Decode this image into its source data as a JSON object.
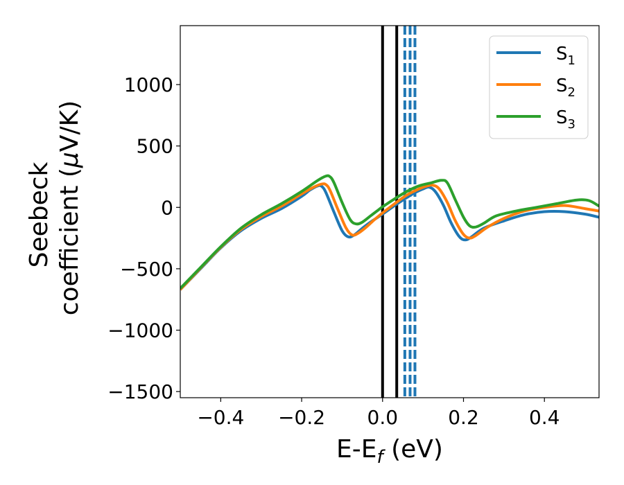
{
  "chart_data": {
    "type": "line",
    "xlabel": {
      "main": "E-E",
      "sub": "f",
      "unit": " (eV)"
    },
    "ylabel": {
      "line1": "Seebeck",
      "line2": "coefficient  (",
      "mu": "μ",
      "unit": "V/K)"
    },
    "xlim": [
      -0.5,
      0.535
    ],
    "ylim": [
      -1550,
      1480
    ],
    "xticks": [
      -0.4,
      -0.2,
      0.0,
      0.2,
      0.4
    ],
    "xtick_labels": [
      "−0.4",
      "−0.2",
      "0.0",
      "0.2",
      "0.4"
    ],
    "yticks": [
      -1500,
      -1000,
      -500,
      0,
      500,
      1000
    ],
    "ytick_labels": [
      "−1500",
      "−1000",
      "−500",
      "0",
      "500",
      "1000"
    ],
    "grid": false,
    "legend_position": "top-right",
    "series": [
      {
        "name": "S",
        "sub": "1",
        "color": "#1f77b4",
        "x": [
          -0.5,
          -0.45,
          -0.4,
          -0.35,
          -0.3,
          -0.25,
          -0.2,
          -0.18,
          -0.16,
          -0.15,
          -0.14,
          -0.12,
          -0.1,
          -0.085,
          -0.07,
          -0.05,
          -0.03,
          0.0,
          0.03,
          0.06,
          0.08,
          0.1,
          0.115,
          0.13,
          0.15,
          0.17,
          0.19,
          0.205,
          0.22,
          0.25,
          0.3,
          0.35,
          0.4,
          0.45,
          0.5,
          0.535
        ],
        "y": [
          -670,
          -500,
          -330,
          -190,
          -90,
          -10,
          90,
          140,
          175,
          170,
          120,
          -40,
          -190,
          -240,
          -225,
          -170,
          -120,
          -55,
          15,
          80,
          120,
          150,
          165,
          130,
          20,
          -130,
          -240,
          -265,
          -240,
          -170,
          -110,
          -60,
          -35,
          -35,
          -55,
          -80
        ]
      },
      {
        "name": "S",
        "sub": "2",
        "color": "#ff7f0e",
        "x": [
          -0.5,
          -0.45,
          -0.4,
          -0.35,
          -0.3,
          -0.25,
          -0.2,
          -0.17,
          -0.15,
          -0.14,
          -0.13,
          -0.11,
          -0.09,
          -0.075,
          -0.06,
          -0.04,
          -0.02,
          0.0,
          0.03,
          0.06,
          0.09,
          0.11,
          0.125,
          0.14,
          0.16,
          0.18,
          0.2,
          0.215,
          0.23,
          0.26,
          0.3,
          0.35,
          0.4,
          0.45,
          0.5,
          0.535
        ],
        "y": [
          -670,
          -495,
          -325,
          -180,
          -75,
          10,
          110,
          165,
          190,
          185,
          140,
          -20,
          -170,
          -225,
          -210,
          -160,
          -100,
          -45,
          30,
          100,
          150,
          175,
          180,
          150,
          40,
          -110,
          -220,
          -250,
          -230,
          -160,
          -90,
          -30,
          0,
          15,
          -10,
          -30
        ]
      },
      {
        "name": "S",
        "sub": "3",
        "color": "#2ca02c",
        "x": [
          -0.5,
          -0.45,
          -0.4,
          -0.35,
          -0.3,
          -0.25,
          -0.2,
          -0.16,
          -0.14,
          -0.13,
          -0.12,
          -0.1,
          -0.08,
          -0.065,
          -0.05,
          -0.03,
          -0.01,
          0.0,
          0.03,
          0.06,
          0.09,
          0.12,
          0.145,
          0.16,
          0.18,
          0.2,
          0.215,
          0.23,
          0.25,
          0.28,
          0.33,
          0.38,
          0.43,
          0.48,
          0.51,
          0.535
        ],
        "y": [
          -660,
          -490,
          -320,
          -170,
          -60,
          30,
          130,
          220,
          255,
          250,
          200,
          40,
          -100,
          -135,
          -120,
          -70,
          -20,
          5,
          70,
          130,
          175,
          200,
          220,
          200,
          60,
          -80,
          -150,
          -160,
          -130,
          -70,
          -30,
          0,
          30,
          60,
          55,
          10
        ]
      }
    ],
    "vlines": [
      {
        "x": 0.0,
        "style": "solid",
        "color": "#000000"
      },
      {
        "x": 0.035,
        "style": "solid",
        "color": "#000000"
      },
      {
        "x": 0.055,
        "style": "dashed",
        "color": "#1f77b4"
      },
      {
        "x": 0.068,
        "style": "dashed",
        "color": "#1f77b4"
      },
      {
        "x": 0.08,
        "style": "dashed",
        "color": "#1f77b4"
      }
    ]
  }
}
